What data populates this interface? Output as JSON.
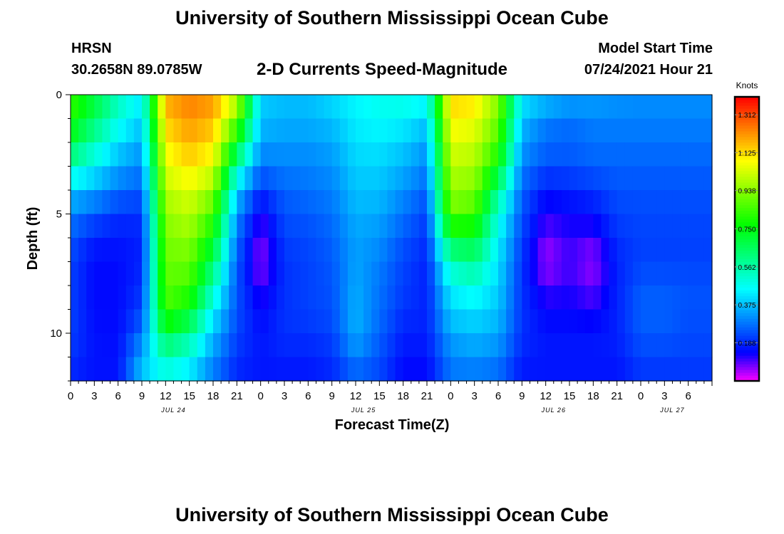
{
  "header": {
    "title": "University of Southern Mississippi Ocean Cube",
    "station": "HRSN",
    "coordinates": "30.2658N  89.0785W",
    "subtitle": "2-D Currents Speed-Magnitude",
    "model_start_label": "Model Start Time",
    "model_start_value": "07/24/2021 Hour 21"
  },
  "footer": {
    "title": "University of Southern Mississippi Ocean Cube"
  },
  "chart_data": {
    "type": "heatmap",
    "xlabel": "Forecast Time(Z)",
    "ylabel": "Depth (ft)",
    "colorbar_label": "Knots",
    "x_hours": [
      0,
      81
    ],
    "x_tick_labels": [
      "0",
      "3",
      "6",
      "9",
      "12",
      "15",
      "18",
      "21",
      "0",
      "3",
      "6",
      "9",
      "12",
      "15",
      "18",
      "21",
      "0",
      "3",
      "6",
      "9",
      "12",
      "15",
      "18",
      "21",
      "0",
      "3",
      "6"
    ],
    "date_labels": [
      {
        "hour": 13,
        "label": "JUL 24"
      },
      {
        "hour": 37,
        "label": "JUL 25"
      },
      {
        "hour": 61,
        "label": "JUL 26"
      },
      {
        "hour": 76,
        "label": "JUL 27"
      }
    ],
    "y_range_ft": [
      0,
      12
    ],
    "y_tick_labels": [
      {
        "depth": 0,
        "label": "0"
      },
      {
        "depth": 5,
        "label": "5"
      },
      {
        "depth": 10,
        "label": "10"
      }
    ],
    "colorbar_range": [
      0,
      1.4
    ],
    "colorbar_ticks": [
      "0.188",
      "0.375",
      "0.562",
      "0.750",
      "0.938",
      "1.125",
      "1.312"
    ],
    "colorbar_tick_values": [
      0.188,
      0.375,
      0.562,
      0.75,
      0.938,
      1.125,
      1.312
    ],
    "depth_levels_ft": [
      0,
      1,
      2,
      3,
      4,
      5,
      6,
      7,
      8,
      9,
      10,
      11,
      12
    ],
    "time_hours": [
      0,
      3,
      6,
      9,
      12,
      15,
      18,
      21,
      24,
      27,
      30,
      33,
      36,
      39,
      42,
      45,
      48,
      51,
      54,
      57,
      60,
      63,
      66,
      69,
      72,
      75,
      78,
      81
    ],
    "speed_knots": [
      [
        0.85,
        0.72,
        0.55,
        0.45,
        1.2,
        1.25,
        1.22,
        1.05,
        0.4,
        0.38,
        0.38,
        0.42,
        0.45,
        0.48,
        0.5,
        0.48,
        1.15,
        1.12,
        0.95,
        0.45,
        0.4,
        0.36,
        0.35,
        0.33,
        0.32,
        0.32,
        0.32,
        0.32
      ],
      [
        0.8,
        0.65,
        0.5,
        0.4,
        1.15,
        1.22,
        1.18,
        0.9,
        0.38,
        0.36,
        0.36,
        0.38,
        0.44,
        0.46,
        0.45,
        0.4,
        1.1,
        1.08,
        0.9,
        0.38,
        0.3,
        0.28,
        0.3,
        0.3,
        0.3,
        0.3,
        0.3,
        0.3
      ],
      [
        0.7,
        0.55,
        0.42,
        0.35,
        1.1,
        1.18,
        1.12,
        0.75,
        0.34,
        0.33,
        0.33,
        0.35,
        0.42,
        0.43,
        0.4,
        0.34,
        1.05,
        1.02,
        0.85,
        0.34,
        0.27,
        0.26,
        0.28,
        0.28,
        0.28,
        0.28,
        0.28,
        0.28
      ],
      [
        0.55,
        0.45,
        0.35,
        0.3,
        1.05,
        1.12,
        1.05,
        0.55,
        0.28,
        0.3,
        0.3,
        0.32,
        0.4,
        0.4,
        0.36,
        0.3,
        1.0,
        0.98,
        0.75,
        0.3,
        0.24,
        0.24,
        0.26,
        0.26,
        0.26,
        0.26,
        0.26,
        0.26
      ],
      [
        0.4,
        0.35,
        0.28,
        0.25,
        1.0,
        1.05,
        0.95,
        0.4,
        0.2,
        0.26,
        0.28,
        0.3,
        0.38,
        0.38,
        0.32,
        0.26,
        0.95,
        0.92,
        0.6,
        0.26,
        0.16,
        0.18,
        0.2,
        0.24,
        0.24,
        0.24,
        0.24,
        0.24
      ],
      [
        0.3,
        0.25,
        0.2,
        0.2,
        0.95,
        1.0,
        0.85,
        0.32,
        0.12,
        0.24,
        0.25,
        0.28,
        0.36,
        0.35,
        0.28,
        0.22,
        0.9,
        0.85,
        0.5,
        0.24,
        0.12,
        0.14,
        0.16,
        0.22,
        0.23,
        0.23,
        0.23,
        0.23
      ],
      [
        0.25,
        0.18,
        0.17,
        0.18,
        0.92,
        0.95,
        0.75,
        0.28,
        0.08,
        0.22,
        0.23,
        0.26,
        0.34,
        0.32,
        0.25,
        0.2,
        0.7,
        0.72,
        0.45,
        0.22,
        0.08,
        0.12,
        0.1,
        0.2,
        0.22,
        0.22,
        0.22,
        0.22
      ],
      [
        0.22,
        0.15,
        0.15,
        0.18,
        0.9,
        0.9,
        0.65,
        0.25,
        0.05,
        0.2,
        0.22,
        0.25,
        0.34,
        0.3,
        0.22,
        0.18,
        0.55,
        0.6,
        0.42,
        0.2,
        0.04,
        0.1,
        0.05,
        0.18,
        0.22,
        0.22,
        0.22,
        0.22
      ],
      [
        0.22,
        0.15,
        0.15,
        0.2,
        0.88,
        0.85,
        0.55,
        0.24,
        0.1,
        0.2,
        0.22,
        0.24,
        0.35,
        0.28,
        0.22,
        0.18,
        0.45,
        0.5,
        0.4,
        0.2,
        0.1,
        0.12,
        0.08,
        0.18,
        0.25,
        0.25,
        0.24,
        0.24
      ],
      [
        0.22,
        0.15,
        0.15,
        0.22,
        0.85,
        0.75,
        0.45,
        0.24,
        0.14,
        0.2,
        0.22,
        0.24,
        0.36,
        0.28,
        0.2,
        0.18,
        0.4,
        0.42,
        0.38,
        0.2,
        0.14,
        0.14,
        0.12,
        0.18,
        0.26,
        0.26,
        0.24,
        0.24
      ],
      [
        0.22,
        0.16,
        0.15,
        0.28,
        0.7,
        0.6,
        0.38,
        0.22,
        0.16,
        0.2,
        0.2,
        0.22,
        0.36,
        0.26,
        0.18,
        0.18,
        0.35,
        0.38,
        0.35,
        0.2,
        0.16,
        0.16,
        0.16,
        0.18,
        0.25,
        0.25,
        0.23,
        0.23
      ],
      [
        0.2,
        0.16,
        0.16,
        0.35,
        0.55,
        0.48,
        0.32,
        0.2,
        0.17,
        0.18,
        0.18,
        0.2,
        0.3,
        0.24,
        0.16,
        0.16,
        0.3,
        0.32,
        0.3,
        0.18,
        0.17,
        0.17,
        0.17,
        0.17,
        0.22,
        0.22,
        0.22,
        0.22
      ],
      [
        0.18,
        0.16,
        0.16,
        0.4,
        0.45,
        0.4,
        0.28,
        0.18,
        0.16,
        0.16,
        0.16,
        0.18,
        0.25,
        0.22,
        0.14,
        0.14,
        0.28,
        0.28,
        0.26,
        0.16,
        0.16,
        0.16,
        0.16,
        0.16,
        0.2,
        0.2,
        0.2,
        0.2
      ]
    ]
  }
}
